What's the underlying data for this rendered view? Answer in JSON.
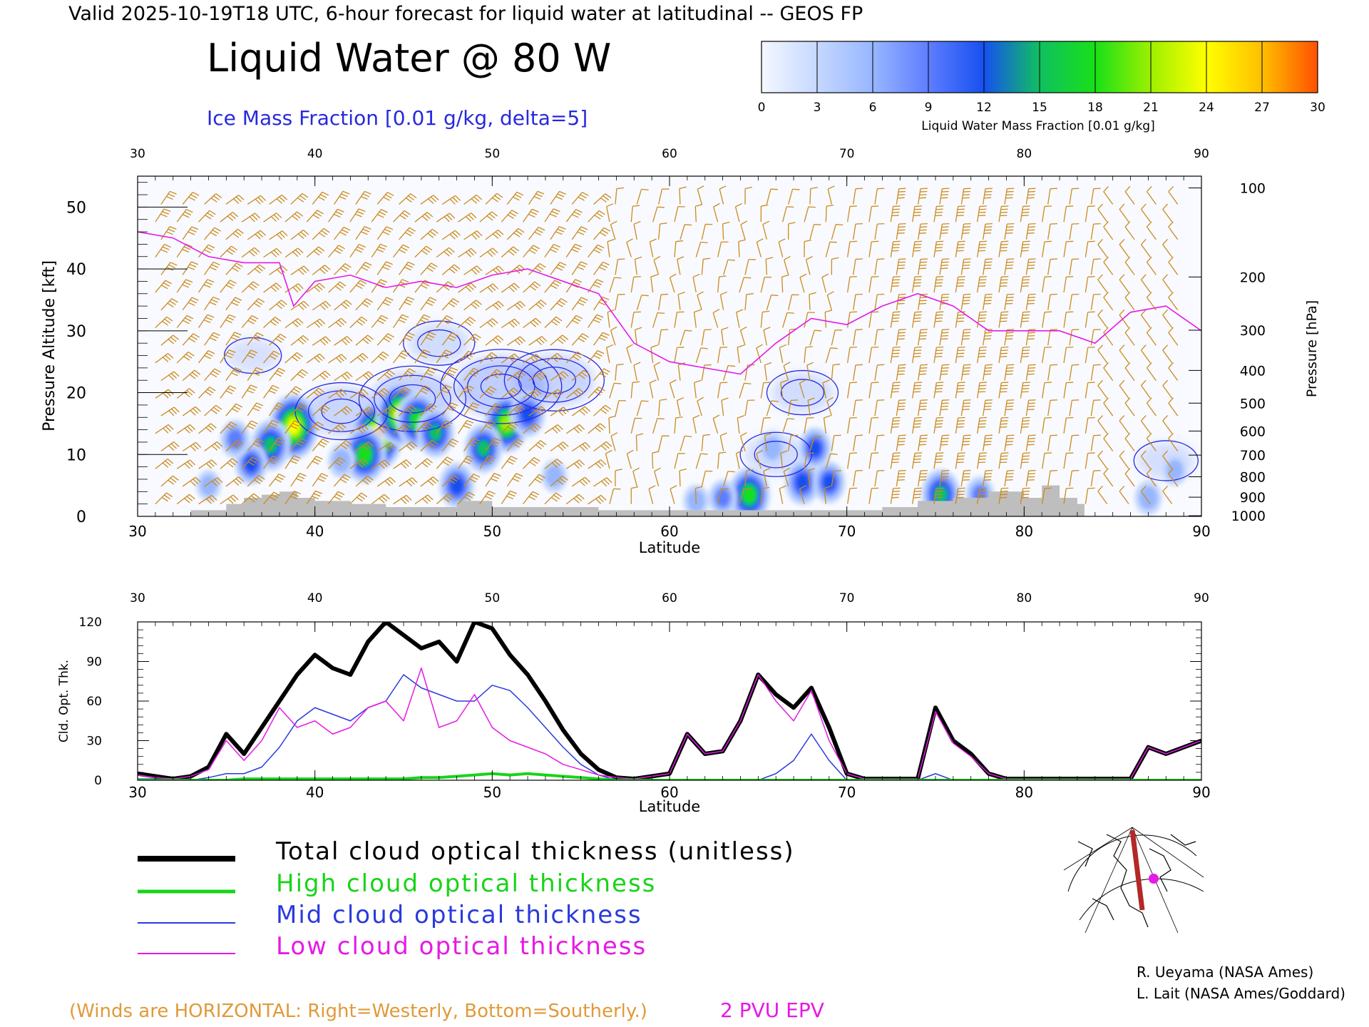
{
  "header": {
    "valid_line": "Valid 2025-10-19T18 UTC, 6-hour forecast for liquid water at latitudinal -- GEOS FP",
    "title": "Liquid Water @ 80 W",
    "ice_label": "Ice Mass Fraction [0.01 g/kg, delta=5]"
  },
  "colorbar": {
    "ticks": [
      "0",
      "3",
      "6",
      "9",
      "12",
      "15",
      "18",
      "21",
      "24",
      "27",
      "30"
    ],
    "label": "Liquid Water Mass Fraction [0.01 g/kg]",
    "colors": [
      "#f4f8ff",
      "#c6d8ff",
      "#97b6ff",
      "#5f7dff",
      "#1650f0",
      "#10c060",
      "#18e018",
      "#9ef000",
      "#ffff00",
      "#ffbf00",
      "#ff5000"
    ]
  },
  "colors": {
    "barb": "#cc8a1e",
    "ice_contour": "#2828dc",
    "epv": "#e619e6",
    "terrain": "#bebebe",
    "total": "#000000",
    "high": "#18d418",
    "mid": "#2a3adc",
    "low": "#e619e6",
    "winds_note": "#e09a3a"
  },
  "chart_data": [
    {
      "type": "heatmap",
      "xlabel": "Latitude",
      "ylabel_left": "Pressure Altitude [kft]",
      "ylabel_right": "Pressure [hPa]",
      "xlim": [
        30,
        90
      ],
      "ylim": [
        0,
        55
      ],
      "x_ticks": [
        "30",
        "40",
        "50",
        "60",
        "70",
        "80",
        "90"
      ],
      "y_ticks": [
        "0",
        "10",
        "20",
        "30",
        "40",
        "50"
      ],
      "pressure_ticks": [
        {
          "label": "100",
          "kft": 53.1
        },
        {
          "label": "200",
          "kft": 38.7
        },
        {
          "label": "300",
          "kft": 30.1
        },
        {
          "label": "400",
          "kft": 23.6
        },
        {
          "label": "500",
          "kft": 18.3
        },
        {
          "label": "600",
          "kft": 13.8
        },
        {
          "label": "700",
          "kft": 9.9
        },
        {
          "label": "800",
          "kft": 6.4
        },
        {
          "label": "900",
          "kft": 3.1
        },
        {
          "label": "1000",
          "kft": 0.1
        }
      ],
      "liquid_water_cells": [
        {
          "lat": 38.8,
          "kft": 14.5,
          "value": 25
        },
        {
          "lat": 37.5,
          "kft": 11.5,
          "value": 17
        },
        {
          "lat": 36.4,
          "kft": 8.5,
          "value": 12
        },
        {
          "lat": 35.5,
          "kft": 12.5,
          "value": 10
        },
        {
          "lat": 43.5,
          "kft": 13,
          "value": 27
        },
        {
          "lat": 42.8,
          "kft": 10,
          "value": 20
        },
        {
          "lat": 44.8,
          "kft": 16.5,
          "value": 24
        },
        {
          "lat": 45.8,
          "kft": 15.5,
          "value": 20
        },
        {
          "lat": 46.8,
          "kft": 13.5,
          "value": 16
        },
        {
          "lat": 50.8,
          "kft": 15,
          "value": 21
        },
        {
          "lat": 49.5,
          "kft": 11,
          "value": 16
        },
        {
          "lat": 52.0,
          "kft": 16.5,
          "value": 14
        },
        {
          "lat": 48.0,
          "kft": 5,
          "value": 14
        },
        {
          "lat": 41.5,
          "kft": 9,
          "value": 8
        },
        {
          "lat": 53.5,
          "kft": 6.5,
          "value": 7
        },
        {
          "lat": 64.5,
          "kft": 3.5,
          "value": 19
        },
        {
          "lat": 63.0,
          "kft": 3,
          "value": 9
        },
        {
          "lat": 61.5,
          "kft": 2.5,
          "value": 7
        },
        {
          "lat": 67.5,
          "kft": 5.5,
          "value": 14
        },
        {
          "lat": 68.2,
          "kft": 11,
          "value": 12
        },
        {
          "lat": 65.8,
          "kft": 11,
          "value": 8
        },
        {
          "lat": 69.0,
          "kft": 5.5,
          "value": 12
        },
        {
          "lat": 75.3,
          "kft": 3.5,
          "value": 17
        },
        {
          "lat": 77.5,
          "kft": 3.5,
          "value": 9
        },
        {
          "lat": 87.0,
          "kft": 3,
          "value": 8
        },
        {
          "lat": 88.5,
          "kft": 7.5,
          "value": 6
        },
        {
          "lat": 34.0,
          "kft": 5,
          "value": 6
        }
      ],
      "ice_fraction_blobs": [
        {
          "lat": 41.5,
          "kft": 17,
          "value": 8
        },
        {
          "lat": 45.5,
          "kft": 19,
          "value": 10
        },
        {
          "lat": 50.5,
          "kft": 21,
          "value": 12
        },
        {
          "lat": 53.5,
          "kft": 22,
          "value": 9
        },
        {
          "lat": 36.5,
          "kft": 26,
          "value": 3
        },
        {
          "lat": 47.0,
          "kft": 28,
          "value": 5
        },
        {
          "lat": 67.5,
          "kft": 20,
          "value": 5
        },
        {
          "lat": 66.0,
          "kft": 10,
          "value": 5
        },
        {
          "lat": 88.0,
          "kft": 9,
          "value": 4
        }
      ],
      "epv_2pvu_tropopause": [
        {
          "lat": 30,
          "kft": 46
        },
        {
          "lat": 32,
          "kft": 45
        },
        {
          "lat": 34,
          "kft": 42
        },
        {
          "lat": 36,
          "kft": 41
        },
        {
          "lat": 38,
          "kft": 41
        },
        {
          "lat": 38.8,
          "kft": 34
        },
        {
          "lat": 40,
          "kft": 38
        },
        {
          "lat": 42,
          "kft": 39
        },
        {
          "lat": 44,
          "kft": 37
        },
        {
          "lat": 46,
          "kft": 38
        },
        {
          "lat": 48,
          "kft": 37
        },
        {
          "lat": 50,
          "kft": 39
        },
        {
          "lat": 52,
          "kft": 40
        },
        {
          "lat": 54,
          "kft": 38
        },
        {
          "lat": 56,
          "kft": 36
        },
        {
          "lat": 58,
          "kft": 28
        },
        {
          "lat": 60,
          "kft": 25
        },
        {
          "lat": 62,
          "kft": 24
        },
        {
          "lat": 64,
          "kft": 23
        },
        {
          "lat": 66,
          "kft": 28
        },
        {
          "lat": 68,
          "kft": 32
        },
        {
          "lat": 70,
          "kft": 31
        },
        {
          "lat": 72,
          "kft": 34
        },
        {
          "lat": 74,
          "kft": 36
        },
        {
          "lat": 76,
          "kft": 34
        },
        {
          "lat": 78,
          "kft": 30
        },
        {
          "lat": 80,
          "kft": 30
        },
        {
          "lat": 82,
          "kft": 30
        },
        {
          "lat": 84,
          "kft": 28
        },
        {
          "lat": 86,
          "kft": 33
        },
        {
          "lat": 88,
          "kft": 34
        },
        {
          "lat": 90,
          "kft": 30
        }
      ],
      "terrain_kft": [
        {
          "lat": 33,
          "kft": 1
        },
        {
          "lat": 35,
          "kft": 2
        },
        {
          "lat": 36,
          "kft": 3
        },
        {
          "lat": 37,
          "kft": 3.5
        },
        {
          "lat": 38,
          "kft": 4
        },
        {
          "lat": 39,
          "kft": 3
        },
        {
          "lat": 40,
          "kft": 2.5
        },
        {
          "lat": 42,
          "kft": 2
        },
        {
          "lat": 44,
          "kft": 1.5
        },
        {
          "lat": 46,
          "kft": 1.5
        },
        {
          "lat": 48,
          "kft": 2.5
        },
        {
          "lat": 50,
          "kft": 1.5
        },
        {
          "lat": 56,
          "kft": 1
        },
        {
          "lat": 60,
          "kft": 1
        },
        {
          "lat": 70,
          "kft": 1
        },
        {
          "lat": 72,
          "kft": 1.5
        },
        {
          "lat": 74,
          "kft": 2.5
        },
        {
          "lat": 76,
          "kft": 3
        },
        {
          "lat": 78,
          "kft": 4
        },
        {
          "lat": 80,
          "kft": 3
        },
        {
          "lat": 81,
          "kft": 5
        },
        {
          "lat": 82,
          "kft": 3
        },
        {
          "lat": 83,
          "kft": 2
        }
      ]
    },
    {
      "type": "line",
      "xlabel": "Latitude",
      "ylabel": "Cld. Opt. Thk.",
      "xlim": [
        30,
        90
      ],
      "ylim": [
        0,
        120
      ],
      "x_ticks": [
        "30",
        "40",
        "50",
        "60",
        "70",
        "80",
        "90"
      ],
      "y_ticks": [
        "0",
        "30",
        "60",
        "90",
        "120"
      ],
      "x": [
        30,
        31,
        32,
        33,
        34,
        35,
        36,
        37,
        38,
        39,
        40,
        41,
        42,
        43,
        44,
        45,
        46,
        47,
        48,
        49,
        50,
        51,
        52,
        53,
        54,
        55,
        56,
        57,
        58,
        59,
        60,
        61,
        62,
        63,
        64,
        65,
        66,
        67,
        68,
        69,
        70,
        71,
        72,
        73,
        74,
        75,
        76,
        77,
        78,
        79,
        80,
        81,
        82,
        83,
        84,
        85,
        86,
        87,
        88,
        89,
        90
      ],
      "series": [
        {
          "name": "Total cloud optical thickness (unitless)",
          "values": [
            5,
            3,
            1,
            3,
            10,
            35,
            20,
            40,
            60,
            80,
            95,
            85,
            80,
            105,
            120,
            110,
            100,
            105,
            90,
            120,
            115,
            95,
            80,
            60,
            38,
            20,
            8,
            2,
            1,
            3,
            5,
            35,
            20,
            22,
            45,
            80,
            65,
            55,
            70,
            40,
            5,
            1,
            1,
            1,
            1,
            55,
            30,
            20,
            5,
            1,
            1,
            1,
            1,
            1,
            1,
            1,
            1,
            25,
            20,
            25,
            30
          ]
        },
        {
          "name": "High cloud optical thickness",
          "values": [
            0,
            0,
            0,
            0,
            0,
            0,
            1,
            1,
            1,
            1,
            1,
            1,
            1,
            1,
            1,
            1,
            2,
            2,
            3,
            4,
            5,
            4,
            5,
            4,
            3,
            2,
            1,
            0,
            0,
            0,
            0,
            0,
            0,
            0,
            0,
            0,
            0,
            0,
            0,
            0,
            0,
            0,
            0,
            0,
            0,
            0,
            0,
            0,
            0,
            0,
            0,
            0,
            0,
            0,
            0,
            0,
            0,
            0,
            0,
            0,
            0
          ]
        },
        {
          "name": "Mid cloud optical thickness",
          "values": [
            1,
            1,
            0,
            0,
            2,
            5,
            5,
            10,
            25,
            45,
            55,
            50,
            45,
            55,
            60,
            80,
            70,
            65,
            60,
            60,
            72,
            68,
            55,
            40,
            25,
            12,
            4,
            0,
            0,
            0,
            0,
            0,
            0,
            0,
            0,
            0,
            5,
            15,
            35,
            15,
            0,
            0,
            0,
            0,
            0,
            5,
            0,
            0,
            0,
            0,
            0,
            0,
            0,
            0,
            0,
            0,
            0,
            0,
            0,
            0,
            0
          ]
        },
        {
          "name": "Low cloud optical thickness",
          "values": [
            4,
            2,
            1,
            3,
            8,
            30,
            15,
            30,
            55,
            40,
            45,
            35,
            40,
            55,
            60,
            45,
            85,
            40,
            45,
            65,
            40,
            30,
            25,
            20,
            12,
            8,
            4,
            2,
            1,
            3,
            5,
            35,
            20,
            22,
            45,
            80,
            60,
            45,
            68,
            30,
            5,
            1,
            1,
            1,
            1,
            52,
            28,
            18,
            5,
            1,
            1,
            1,
            1,
            1,
            1,
            1,
            1,
            25,
            20,
            25,
            30
          ]
        }
      ]
    }
  ],
  "legend": [
    {
      "label": "Total cloud optical thickness (unitless)"
    },
    {
      "label": "High cloud optical thickness"
    },
    {
      "label": "Mid cloud optical thickness"
    },
    {
      "label": "Low cloud optical thickness"
    }
  ],
  "footer": {
    "winds_note": "(Winds are HORIZONTAL: Right=Westerly, Bottom=Southerly.)",
    "epv_note": "2 PVU EPV",
    "credit_1": "R. Ueyama (NASA Ames)",
    "credit_2": "L. Lait (NASA Ames/Goddard)"
  }
}
